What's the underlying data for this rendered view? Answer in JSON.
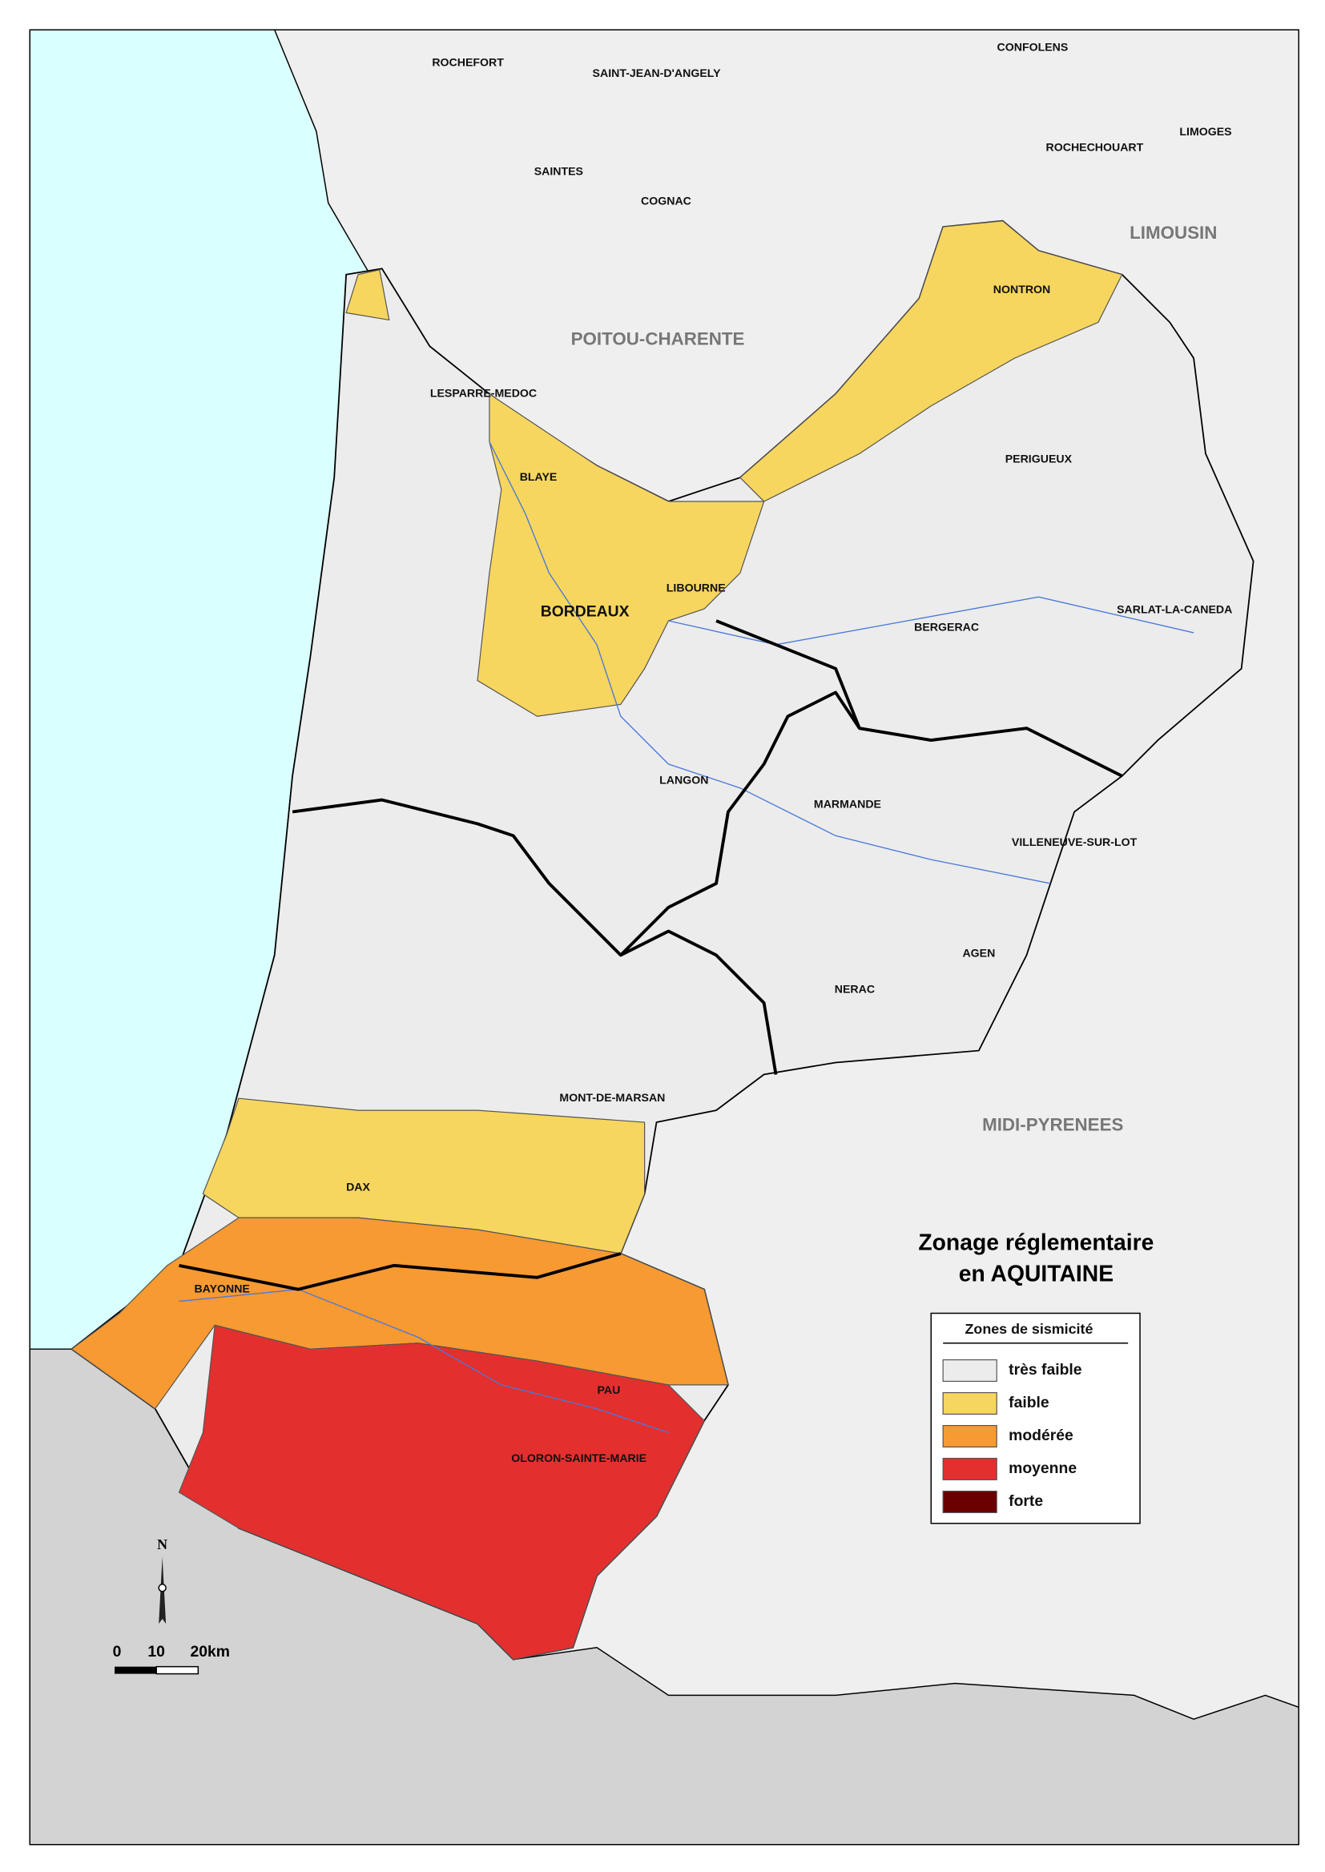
{
  "map": {
    "title": [
      "Zonage réglementaire",
      "en AQUITAINE"
    ],
    "legend": {
      "title": "Zones de sismicité",
      "items": [
        {
          "name": "très faible",
          "color": "#ececec"
        },
        {
          "name": "faible",
          "color": "#f7d65f"
        },
        {
          "name": "modérée",
          "color": "#f79a32"
        },
        {
          "name": "moyenne",
          "color": "#e42f2f"
        },
        {
          "name": "forte",
          "color": "#6b0000"
        }
      ]
    },
    "regions": [
      "LIMOUSIN",
      "POITOU-CHARENTE",
      "MIDI-PYRENEES"
    ],
    "places": [
      "ROCHEFORT",
      "SAINT-JEAN-D'ANGELY",
      "CONFOLENS",
      "LIMOGES",
      "ROCHECHOUART",
      "SAINTES",
      "COGNAC",
      "NONTRON",
      "LESPARRE-MEDOC",
      "BLAYE",
      "PERIGUEUX",
      "LIBOURNE",
      "BORDEAUX",
      "BERGERAC",
      "SARLAT-LA-CANEDA",
      "LANGON",
      "MARMANDE",
      "VILLENEUVE-SUR-LOT",
      "AGEN",
      "NERAC",
      "MONT-DE-MARSAN",
      "DAX",
      "BAYONNE",
      "PAU",
      "OLORON-SAINTE-MARIE"
    ],
    "north": "N",
    "scale_labels": [
      "0",
      "10",
      "20km"
    ]
  }
}
